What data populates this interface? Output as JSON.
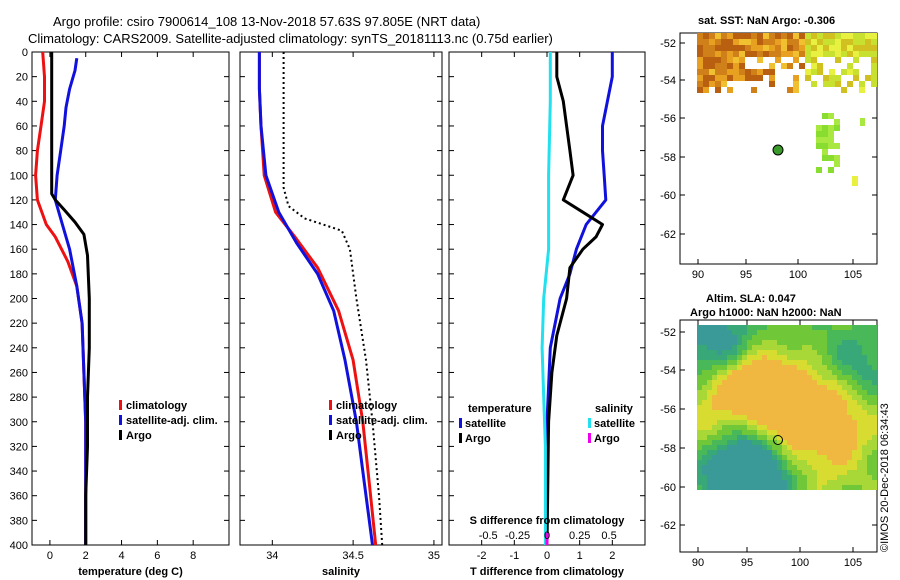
{
  "header": {
    "line1": "Argo profile: csiro 7900614_108 13-Nov-2018 57.63S 97.805E (NRT data)",
    "line2": "Climatology: CARS2009. Satellite-adjusted climatology: synTS_20181113.nc (0.75d earlier)"
  },
  "colors": {
    "climatology": "#ee1111",
    "satellite": "#1111dd",
    "argo": "#000000",
    "sal_satellite": "#22e0ee",
    "sal_argo": "#ee00ee"
  },
  "chart_data": [
    {
      "id": "temperature",
      "type": "line",
      "xlabel": "temperature (deg C)",
      "ylim": [
        0,
        400
      ],
      "xlim": [
        -1,
        10
      ],
      "xticks": [
        0,
        2,
        4,
        6,
        8
      ],
      "yticks": [
        0,
        20,
        40,
        60,
        80,
        100,
        120,
        140,
        160,
        180,
        200,
        220,
        240,
        260,
        280,
        300,
        320,
        340,
        360,
        380,
        400
      ],
      "legend": [
        "climatology",
        "satellite-adj. clim.",
        "Argo"
      ],
      "series": [
        {
          "name": "climatology",
          "color_key": "climatology",
          "points": [
            [
              -0.4,
              0
            ],
            [
              -0.3,
              20
            ],
            [
              -0.3,
              40
            ],
            [
              -0.5,
              60
            ],
            [
              -0.7,
              80
            ],
            [
              -0.8,
              100
            ],
            [
              -0.7,
              120
            ],
            [
              -0.2,
              140
            ],
            [
              0.3,
              150
            ],
            [
              1.0,
              170
            ],
            [
              1.5,
              190
            ],
            [
              1.8,
              220
            ],
            [
              1.9,
              260
            ],
            [
              2.0,
              300
            ],
            [
              2.0,
              400
            ]
          ]
        },
        {
          "name": "satellite-adj. clim.",
          "color_key": "satellite",
          "points": [
            [
              1.5,
              5
            ],
            [
              1.4,
              15
            ],
            [
              1.1,
              30
            ],
            [
              0.9,
              45
            ],
            [
              0.8,
              60
            ],
            [
              0.6,
              80
            ],
            [
              0.4,
              100
            ],
            [
              0.3,
              120
            ],
            [
              0.7,
              140
            ],
            [
              1.1,
              160
            ],
            [
              1.5,
              190
            ],
            [
              1.8,
              220
            ],
            [
              1.9,
              260
            ],
            [
              2.0,
              300
            ],
            [
              2.0,
              400
            ]
          ]
        },
        {
          "name": "Argo",
          "color_key": "argo",
          "points": [
            [
              0.1,
              0
            ],
            [
              0.1,
              40
            ],
            [
              0.1,
              80
            ],
            [
              0.1,
              115
            ],
            [
              0.3,
              120
            ],
            [
              0.8,
              128
            ],
            [
              1.4,
              138
            ],
            [
              1.9,
              148
            ],
            [
              2.1,
              165
            ],
            [
              2.2,
              200
            ],
            [
              2.2,
              240
            ],
            [
              2.1,
              280
            ],
            [
              2.1,
              320
            ],
            [
              2.0,
              360
            ],
            [
              2.0,
              400
            ]
          ]
        }
      ]
    },
    {
      "id": "salinity",
      "type": "line",
      "xlabel": "salinity",
      "ylim": [
        0,
        400
      ],
      "xlim": [
        33.8,
        35.05
      ],
      "xticks": [
        34,
        34.5,
        35
      ],
      "legend": [
        "climatology",
        "satellite-adj. clim.",
        "Argo"
      ],
      "series": [
        {
          "name": "climatology",
          "color_key": "climatology",
          "points": [
            [
              33.92,
              0
            ],
            [
              33.92,
              30
            ],
            [
              33.93,
              60
            ],
            [
              33.95,
              100
            ],
            [
              34.02,
              130
            ],
            [
              34.14,
              150
            ],
            [
              34.28,
              175
            ],
            [
              34.41,
              210
            ],
            [
              34.5,
              250
            ],
            [
              34.56,
              300
            ],
            [
              34.6,
              350
            ],
            [
              34.64,
              400
            ]
          ]
        },
        {
          "name": "satellite-adj. clim.",
          "color_key": "satellite",
          "points": [
            [
              33.92,
              0
            ],
            [
              33.92,
              30
            ],
            [
              33.93,
              60
            ],
            [
              33.96,
              100
            ],
            [
              34.04,
              130
            ],
            [
              34.15,
              155
            ],
            [
              34.28,
              180
            ],
            [
              34.38,
              210
            ],
            [
              34.45,
              250
            ],
            [
              34.52,
              300
            ],
            [
              34.57,
              350
            ],
            [
              34.62,
              400
            ]
          ]
        },
        {
          "name": "Argo",
          "color_key": "argo",
          "dashed": true,
          "points": [
            [
              34.07,
              0
            ],
            [
              34.07,
              50
            ],
            [
              34.07,
              110
            ],
            [
              34.1,
              125
            ],
            [
              34.2,
              135
            ],
            [
              34.43,
              145
            ],
            [
              34.48,
              160
            ],
            [
              34.52,
              200
            ],
            [
              34.58,
              250
            ],
            [
              34.62,
              300
            ],
            [
              34.66,
              360
            ],
            [
              34.68,
              400
            ]
          ]
        }
      ]
    },
    {
      "id": "difference",
      "type": "line",
      "xlabel": "T difference from climatology",
      "toplabel": "S difference from climatology",
      "ylim": [
        0,
        400
      ],
      "xlim": [
        -3,
        3
      ],
      "xticks": [
        -2,
        -1,
        0,
        1,
        2
      ],
      "top_ticks": [
        "-0.5",
        "-0.25",
        "0",
        "0.25",
        "0.5"
      ],
      "legend_left_title": "temperature",
      "legend_right_title": "salinity",
      "legend_left": [
        "satellite",
        "Argo"
      ],
      "legend_right": [
        "satellite",
        "Argo"
      ],
      "series": [
        {
          "name": "T satellite",
          "color_key": "satellite",
          "points": [
            [
              2.0,
              0
            ],
            [
              2.0,
              20
            ],
            [
              1.85,
              40
            ],
            [
              1.7,
              60
            ],
            [
              1.7,
              80
            ],
            [
              1.75,
              100
            ],
            [
              1.8,
              120
            ],
            [
              1.2,
              140
            ],
            [
              0.9,
              160
            ],
            [
              0.7,
              180
            ],
            [
              0.4,
              200
            ],
            [
              0.1,
              240
            ],
            [
              0.0,
              300
            ],
            [
              0.0,
              400
            ]
          ]
        },
        {
          "name": "T Argo",
          "color_key": "argo",
          "points": [
            [
              0.3,
              0
            ],
            [
              0.3,
              20
            ],
            [
              0.5,
              40
            ],
            [
              0.6,
              60
            ],
            [
              0.7,
              80
            ],
            [
              0.8,
              100
            ],
            [
              0.5,
              120
            ],
            [
              1.1,
              130
            ],
            [
              1.7,
              140
            ],
            [
              1.5,
              150
            ],
            [
              1.1,
              160
            ],
            [
              0.7,
              175
            ],
            [
              0.6,
              200
            ],
            [
              0.3,
              230
            ],
            [
              0.15,
              260
            ],
            [
              0.05,
              300
            ],
            [
              0.0,
              400
            ]
          ]
        },
        {
          "name": "S satellite",
          "color_key": "sal_satellite",
          "points": [
            [
              0.1,
              0
            ],
            [
              0.1,
              40
            ],
            [
              0.05,
              100
            ],
            [
              0.05,
              160
            ],
            [
              -0.1,
              200
            ],
            [
              -0.15,
              240
            ],
            [
              -0.1,
              280
            ],
            [
              -0.05,
              320
            ],
            [
              -0.05,
              400
            ]
          ]
        },
        {
          "name": "S Argo",
          "color_key": "sal_argo",
          "points": [
            [
              0.0,
              390
            ],
            [
              0.0,
              400
            ]
          ]
        }
      ]
    }
  ],
  "sst_map": {
    "title": "sat. SST: NaN Argo: -0.306",
    "yticks": [
      "-52",
      "-54",
      "-56",
      "-58",
      "-60",
      "-62"
    ],
    "xticks": [
      "90",
      "95",
      "100",
      "105"
    ]
  },
  "sla_map": {
    "title1": "Altim. SLA: 0.047",
    "title2": "Argo h1000: NaN h2000: NaN",
    "yticks": [
      "-52",
      "-54",
      "-56",
      "-58",
      "-60",
      "-62"
    ],
    "xticks": [
      "90",
      "95",
      "100",
      "105"
    ]
  },
  "credit": "©IMOS 20-Dec-2018 06:34:43"
}
